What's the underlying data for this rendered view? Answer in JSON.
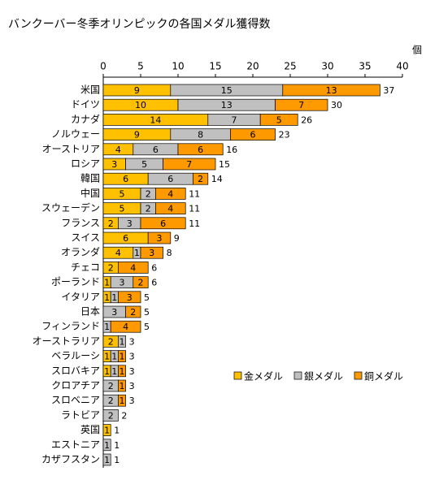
{
  "chart_data": {
    "type": "stacked-bar-horizontal",
    "title": "バンクーバー冬季オリンピックの各国メダル獲得数",
    "x_unit": "個",
    "xlim": [
      0,
      40
    ],
    "xticks": [
      0,
      5,
      10,
      15,
      20,
      25,
      30,
      35,
      40
    ],
    "categories": [
      "米国",
      "ドイツ",
      "カナダ",
      "ノルウェー",
      "オーストリア",
      "ロシア",
      "韓国",
      "中国",
      "スウェーデン",
      "フランス",
      "スイス",
      "オランダ",
      "チェコ",
      "ポーランド",
      "イタリア",
      "日本",
      "フィンランド",
      "オーストラリア",
      "ベラルーシ",
      "スロバキア",
      "クロアチア",
      "スロベニア",
      "ラトビア",
      "英国",
      "エストニア",
      "カザフスタン"
    ],
    "series": [
      {
        "name": "金メダル",
        "color": "#ffc000",
        "values": [
          9,
          10,
          14,
          9,
          4,
          3,
          6,
          5,
          5,
          2,
          6,
          4,
          2,
          1,
          1,
          0,
          0,
          2,
          1,
          1,
          0,
          0,
          0,
          1,
          0,
          0
        ]
      },
      {
        "name": "銀メダル",
        "color": "#c0c0c0",
        "values": [
          15,
          13,
          7,
          8,
          6,
          5,
          6,
          2,
          2,
          3,
          0,
          1,
          0,
          3,
          1,
          3,
          1,
          1,
          1,
          1,
          2,
          2,
          2,
          0,
          1,
          1
        ]
      },
      {
        "name": "銅メダル",
        "color": "#ff9900",
        "values": [
          13,
          7,
          5,
          6,
          6,
          7,
          2,
          4,
          4,
          6,
          3,
          3,
          4,
          2,
          3,
          2,
          4,
          0,
          1,
          1,
          1,
          1,
          0,
          0,
          0,
          0
        ]
      }
    ],
    "totals": [
      37,
      30,
      26,
      23,
      16,
      15,
      14,
      11,
      11,
      11,
      9,
      8,
      6,
      6,
      5,
      5,
      5,
      3,
      3,
      3,
      3,
      3,
      2,
      1,
      1,
      1
    ]
  }
}
